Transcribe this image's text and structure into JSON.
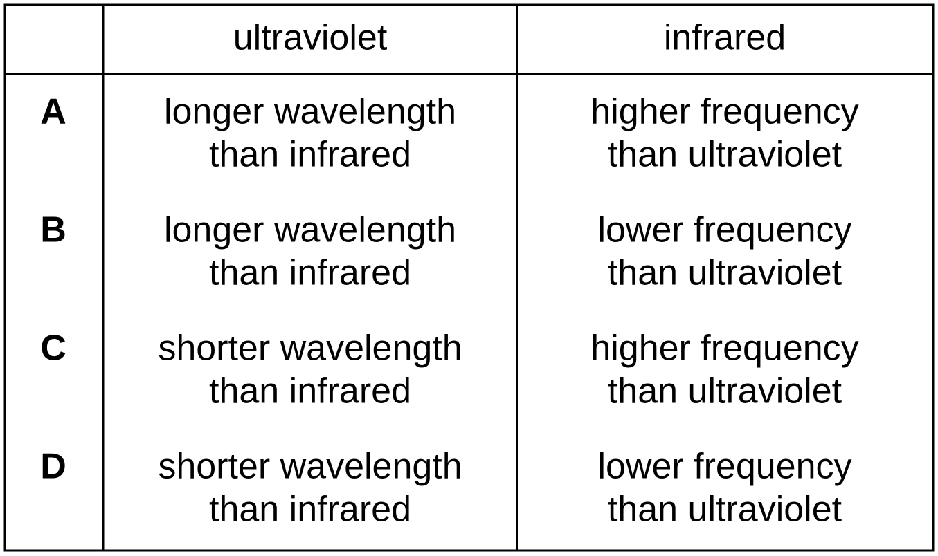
{
  "table": {
    "columns": [
      "ultraviolet",
      "infrared"
    ],
    "rows": [
      {
        "label": "A",
        "cells": [
          [
            "longer wavelength",
            "than infrared"
          ],
          [
            "higher frequency",
            "than ultraviolet"
          ]
        ]
      },
      {
        "label": "B",
        "cells": [
          [
            "longer wavelength",
            "than infrared"
          ],
          [
            "lower frequency",
            "than ultraviolet"
          ]
        ]
      },
      {
        "label": "C",
        "cells": [
          [
            "shorter wavelength",
            "than infrared"
          ],
          [
            "higher frequency",
            "than ultraviolet"
          ]
        ]
      },
      {
        "label": "D",
        "cells": [
          [
            "shorter wavelength",
            "than infrared"
          ],
          [
            "lower frequency",
            "than ultraviolet"
          ]
        ]
      }
    ]
  }
}
